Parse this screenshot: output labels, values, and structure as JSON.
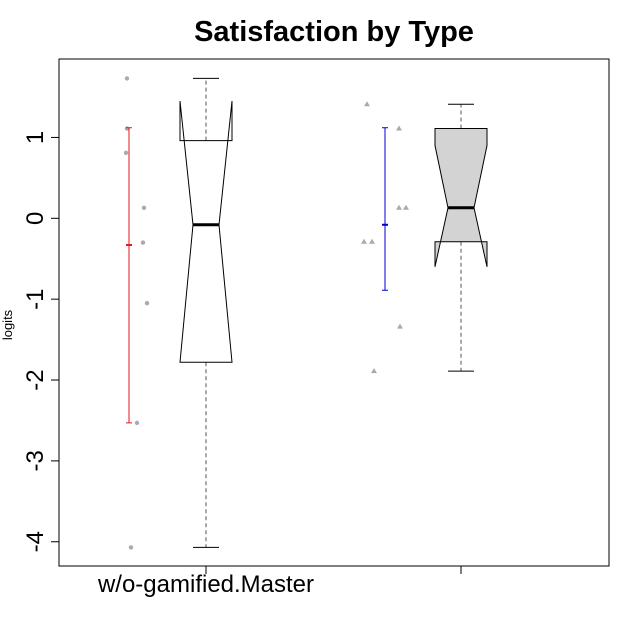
{
  "chart_data": {
    "type": "box",
    "title": "Satisfaction by Type",
    "xlabel": "",
    "ylabel": "logits",
    "ylim": [
      -4.3,
      1.97
    ],
    "yticks": [
      1,
      0,
      -1,
      -2,
      -3,
      -4
    ],
    "ytick_labels": [
      "1",
      "0",
      "-1",
      "-2",
      "-3",
      "-4"
    ],
    "xtick_labels": [
      "w/o-gamified.Master",
      ""
    ],
    "grid": false,
    "groups": [
      {
        "fill": "#ffffff",
        "notched": true,
        "whisker_low": -4.07,
        "q1": -1.78,
        "median": -0.08,
        "q3": 0.96,
        "whisker_high": 1.73,
        "notch_low": -1.78,
        "notch_high": 1.45,
        "points": [
          1.73,
          1.11,
          0.81,
          0.13,
          -0.3,
          -1.05,
          -2.53,
          -4.07
        ],
        "point_marker": "circle",
        "mean_sd": {
          "mean": -0.33,
          "low": -2.53,
          "high": 1.12,
          "color": "#e31a1c"
        }
      },
      {
        "fill": "#d3d3d3",
        "notched": true,
        "whisker_low": -1.89,
        "q1": -0.29,
        "median": 0.13,
        "q3": 1.11,
        "whisker_high": 1.41,
        "notch_low": -0.6,
        "notch_high": 0.9,
        "points": [
          1.41,
          1.11,
          0.13,
          0.13,
          -0.29,
          -0.29,
          -1.34,
          -1.89
        ],
        "point_marker": "triangle",
        "mean_sd": {
          "mean": -0.08,
          "low": -0.89,
          "high": 1.12,
          "color": "#0000cd"
        }
      }
    ]
  }
}
